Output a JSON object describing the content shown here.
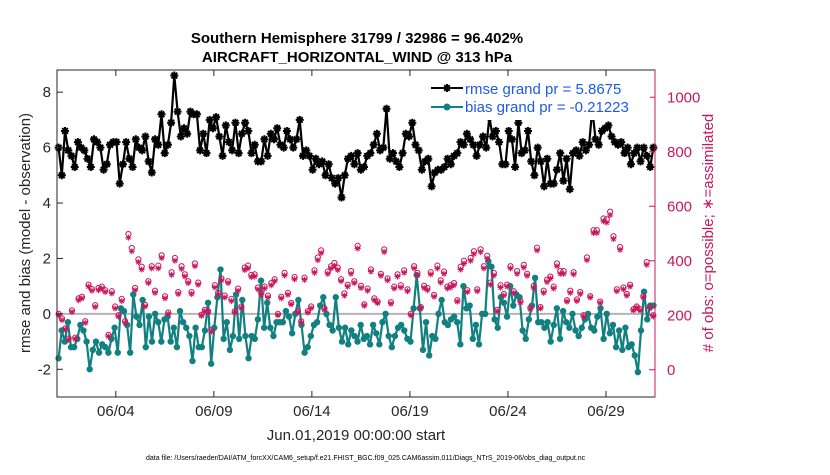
{
  "chart_data": {
    "type": "line",
    "title_line1": "Southern Hemisphere 31799 / 32986 = 96.402%",
    "title_line2": "AIRCRAFT_HORIZONTAL_WIND @ 313 hPa",
    "xlabel": "Jun.01,2019 00:00:00 start",
    "ylabel_left": "rmse and bias (model - observation)",
    "ylabel_right": "# of obs: o=possible; ∗=assimilated",
    "footer": "data file: /Users/raeder/DAI/ATM_forcXX/CAM6_setup/f.e21.FHIST_BGC.f09_025.CAM6assim.011/Diags_NTrS_2019-06/obs_diag_output.nc",
    "x_range": [
      0,
      30.5
    ],
    "ylim_left": [
      -3,
      8.8
    ],
    "ylim_right": [
      -100,
      1100
    ],
    "x_ticks": [
      {
        "value": 3,
        "label": "06/04"
      },
      {
        "value": 8,
        "label": "06/09"
      },
      {
        "value": 13,
        "label": "06/14"
      },
      {
        "value": 18,
        "label": "06/19"
      },
      {
        "value": 23,
        "label": "06/24"
      },
      {
        "value": 28,
        "label": "06/29"
      }
    ],
    "y_ticks_left": [
      -2,
      0,
      2,
      4,
      6,
      8
    ],
    "y_ticks_right": [
      0,
      200,
      400,
      600,
      800,
      1000
    ],
    "colors": {
      "rmse": "#000000",
      "bias": "#128080",
      "obs": "#c8175d",
      "zero_line": "#b4b4b4",
      "legend_text": "#1c5ce4"
    },
    "legend": [
      {
        "series": "rmse",
        "label": "rmse grand pr = 5.8675"
      },
      {
        "series": "bias",
        "label": "bias grand pr = -0.21223"
      }
    ],
    "series": [
      {
        "name": "rmse",
        "axis": "left",
        "marker": "star",
        "values": [
          6.0,
          5.0,
          6.6,
          5.9,
          5.7,
          5.3,
          6.2,
          6.0,
          5.9,
          5.6,
          5.3,
          6.3,
          6.2,
          6.0,
          5.2,
          5.4,
          6.1,
          6.2,
          6.2,
          4.7,
          5.4,
          6.2,
          5.6,
          5.3,
          6.3,
          6.0,
          5.9,
          6.4,
          5.5,
          5.1,
          6.3,
          6.1,
          7.2,
          5.8,
          6.1,
          6.9,
          8.6,
          7.3,
          6.4,
          6.7,
          6.5,
          7.3,
          7.2,
          7.2,
          5.9,
          6.5,
          5.8,
          7.0,
          6.7,
          7.1,
          6.4,
          5.7,
          6.8,
          6.2,
          5.9,
          6.9,
          5.8,
          6.5,
          6.9,
          6.6,
          5.8,
          6.1,
          5.5,
          5.5,
          6.3,
          5.7,
          6.5,
          6.3,
          6.7,
          6.1,
          6.0,
          6.6,
          6.3,
          6.0,
          6.3,
          7.0,
          5.7,
          5.9,
          5.7,
          5.2,
          5.6,
          5.4,
          5.5,
          5.0,
          5.4,
          4.9,
          4.7,
          4.9,
          4.2,
          5.0,
          5.6,
          5.7,
          5.4,
          5.8,
          5.2,
          5.3,
          5.7,
          5.8,
          6.1,
          6.5,
          5.9,
          6.0,
          7.4,
          5.6,
          5.8,
          5.5,
          5.3,
          5.8,
          6.5,
          6.4,
          6.9,
          6.1,
          5.9,
          5.2,
          5.5,
          5.6,
          4.6,
          5.1,
          5.2,
          5.2,
          5.3,
          5.6,
          5.4,
          5.7,
          5.8,
          6.2,
          6.1,
          6.5,
          6.3,
          6.1,
          5.7,
          6.1,
          6.4,
          6.0,
          7.1,
          6.4,
          6.6,
          6.2,
          5.4,
          5.4,
          6.6,
          6.3,
          5.3,
          6.9,
          5.8,
          5.9,
          6.6,
          5.5,
          5.0,
          6.0,
          5.5,
          4.6,
          5.6,
          4.7,
          4.7,
          5.2,
          5.8,
          4.8,
          5.6,
          4.5,
          5.8,
          5.9,
          5.7,
          6.2,
          5.9,
          6.1,
          7.4,
          6.3,
          6.1,
          6.6,
          6.7,
          6.8,
          6.4,
          6.2,
          6.1,
          6.2,
          5.8,
          6.0,
          5.4,
          5.8,
          6.0,
          5.5,
          6.0,
          5.7,
          5.3,
          6.0
        ]
      },
      {
        "name": "bias",
        "axis": "left",
        "marker": "dot",
        "values": [
          -1.6,
          -0.6,
          -1.0,
          -0.3,
          -1.2,
          -1.2,
          -0.9,
          -0.4,
          -0.6,
          -1.0,
          -2.0,
          -1.3,
          -1.0,
          -1.4,
          -1.1,
          -1.2,
          -1.4,
          -0.9,
          -0.5,
          -1.4,
          0.2,
          0.1,
          -0.4,
          -1.4,
          0.7,
          -0.1,
          -0.4,
          0.5,
          -1.2,
          -0.1,
          -1.0,
          0.0,
          -0.3,
          -1.0,
          -0.2,
          -0.1,
          -1.0,
          -0.5,
          -1.2,
          0.1,
          -0.3,
          -0.5,
          -0.8,
          -1.7,
          -0.5,
          -1.2,
          -1.2,
          -0.6,
          0.4,
          -1.8,
          -0.5,
          0.6,
          1.6,
          -0.9,
          -0.3,
          -1.3,
          -0.8,
          0.7,
          -0.9,
          0.5,
          -0.8,
          -1.6,
          -0.8,
          -0.9,
          -0.2,
          1.2,
          -0.5,
          0.4,
          -0.5,
          -0.8,
          -0.3,
          -0.3,
          -0.3,
          0.1,
          -0.1,
          -0.7,
          0.0,
          0.5,
          -0.4,
          -1.4,
          -1.2,
          -0.8,
          -0.4,
          -0.3,
          0.3,
          0.6,
          0.0,
          -0.4,
          -0.6,
          0.6,
          -0.5,
          -1.0,
          -0.5,
          -1.1,
          -0.6,
          -0.8,
          -1.0,
          -0.4,
          -0.9,
          -0.8,
          -1.1,
          -0.4,
          -0.7,
          -1.1,
          -0.3,
          0.0,
          -0.8,
          -1.2,
          -0.8,
          -0.5,
          -0.4,
          -0.6,
          -0.9,
          -1.0,
          0.2,
          1.4,
          0.2,
          -1.3,
          -0.3,
          -1.5,
          -0.8,
          -0.9,
          0.0,
          0.5,
          -0.3,
          -0.4,
          -0.2,
          -0.1,
          -0.3,
          -1.1,
          1.0,
          0.2,
          0.3,
          -0.9,
          -0.4,
          -1.1,
          0.0,
          0.0,
          1.9,
          1.7,
          -0.2,
          -0.5,
          0.6,
          0.4,
          -0.1,
          1.0,
          0.3,
          0.7,
          0.6,
          -0.6,
          -0.9,
          -0.2,
          0.3,
          1.3,
          -0.3,
          -0.3,
          -0.5,
          -0.3,
          -1.0,
          -0.4,
          0.2,
          -0.9,
          0.1,
          -0.3,
          -0.5,
          0.0,
          -0.6,
          -0.8,
          -0.5,
          -0.2,
          0.0,
          -0.5,
          -0.6,
          -0.1,
          0.2,
          -0.9,
          0.0,
          -0.7,
          -0.4,
          -1.2,
          -0.6,
          -1.3,
          -0.5,
          -1.2,
          -1.1,
          -1.5,
          -2.1,
          -0.6,
          0.8,
          -0.2,
          0.3,
          0.3
        ]
      },
      {
        "name": "obs_possible",
        "axis": "right",
        "marker": "circle",
        "values": [
          205,
          188,
          152,
          115,
          218,
          118,
          262,
          268,
          178,
          312,
          296,
          237,
          300,
          305,
          292,
          128,
          288,
          232,
          200,
          260,
          178,
          498,
          447,
          300,
          405,
          378,
          238,
          325,
          380,
          290,
          382,
          420,
          270,
          210,
          358,
          410,
          285,
          380,
          350,
          325,
          285,
          390,
          320,
          202,
          220,
          215,
          145,
          310,
          282,
          335,
          272,
          325,
          260,
          215,
          298,
          232,
          375,
          382,
          348,
          350,
          302,
          282,
          305,
          272,
          318,
          332,
          205,
          268,
          355,
          282,
          245,
          340,
          215,
          178,
          338,
          215,
          232,
          365,
          412,
          438,
          225,
          360,
          380,
          392,
          375,
          332,
          280,
          312,
          362,
          325,
          455,
          308,
          240,
          298,
          368,
          262,
          250,
          352,
          442,
          335,
          248,
          305,
          350,
          310,
          365,
          295,
          205,
          380,
          355,
          230,
          308,
          300,
          358,
          275,
          382,
          328,
          360,
          305,
          310,
          318,
          255,
          378,
          400,
          292,
          410,
          435,
          295,
          442,
          380,
          418,
          320,
          355,
          220,
          310,
          278,
          312,
          380,
          288,
          362,
          252,
          385,
          352,
          228,
          308,
          448,
          230,
          290,
          330,
          342,
          305,
          390,
          362,
          362,
          255,
          290,
          358,
          258,
          285,
          200,
          412,
          270,
          512,
          512,
          250,
          555,
          552,
          580,
          490,
          295,
          450,
          302,
          278,
          312,
          222,
          232,
          222,
          270,
          395,
          230,
          200
        ]
      },
      {
        "name": "obs_assimilated",
        "axis": "right",
        "marker": "star",
        "values": [
          200,
          182,
          148,
          110,
          212,
          112,
          255,
          262,
          172,
          305,
          290,
          230,
          292,
          298,
          285,
          122,
          280,
          225,
          195,
          252,
          172,
          485,
          435,
          292,
          395,
          368,
          232,
          318,
          372,
          282,
          372,
          410,
          262,
          205,
          348,
          400,
          278,
          370,
          342,
          318,
          278,
          380,
          312,
          198,
          215,
          210,
          140,
          302,
          275,
          328,
          265,
          318,
          252,
          210,
          290,
          226,
          366,
          372,
          340,
          342,
          295,
          275,
          298,
          265,
          310,
          325,
          200,
          262,
          346,
          275,
          240,
          332,
          210,
          172,
          330,
          210,
          226,
          356,
          402,
          428,
          220,
          352,
          372,
          382,
          366,
          325,
          272,
          305,
          352,
          318,
          445,
          300,
          235,
          290,
          360,
          255,
          245,
          345,
          432,
          328,
          242,
          298,
          342,
          302,
          356,
          288,
          200,
          372,
          346,
          225,
          300,
          292,
          350,
          268,
          372,
          320,
          352,
          298,
          302,
          310,
          250,
          368,
          390,
          285,
          400,
          425,
          288,
          432,
          372,
          408,
          312,
          346,
          215,
          302,
          272,
          305,
          372,
          282,
          352,
          246,
          375,
          345,
          222,
          300,
          438,
          225,
          282,
          322,
          335,
          298,
          380,
          352,
          352,
          250,
          282,
          350,
          252,
          278,
          195,
          402,
          265,
          502,
          502,
          245,
          545,
          540,
          568,
          480,
          288,
          440,
          295,
          272,
          305,
          218,
          228,
          218,
          265,
          385,
          225,
          195
        ]
      }
    ]
  }
}
